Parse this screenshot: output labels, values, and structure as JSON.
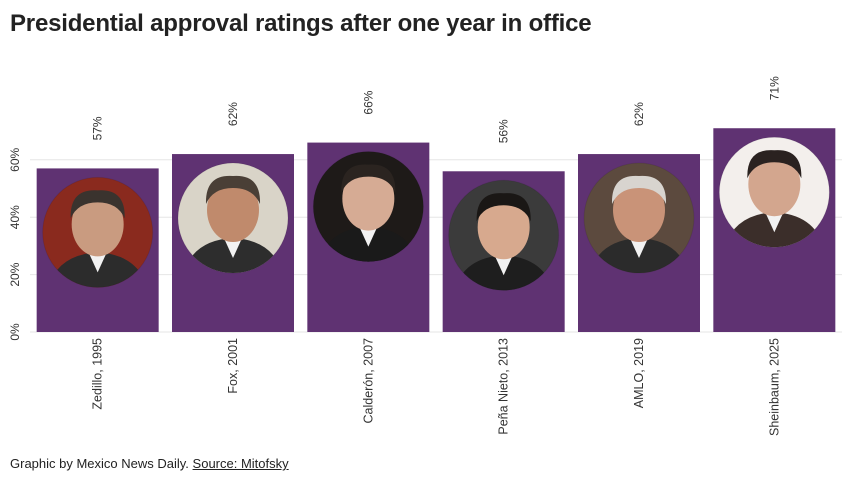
{
  "title": "Presidential approval ratings after one year in office",
  "footer": {
    "credit": "Graphic by Mexico News Daily.",
    "source_label": "Source: Mitofsky"
  },
  "chart_data": {
    "type": "bar",
    "categories": [
      "Zedillo, 1995",
      "Fox, 2001",
      "Calderón, 2007",
      "Peña Nieto, 2013",
      "AMLO, 2019",
      "Sheinbaum, 2025"
    ],
    "values": [
      57,
      62,
      66,
      56,
      62,
      71
    ],
    "value_labels": [
      "57%",
      "62%",
      "66%",
      "56%",
      "62%",
      "71%"
    ],
    "yticks": [
      0,
      20,
      40,
      60
    ],
    "ytick_labels": [
      "0%",
      "20%",
      "40%",
      "60%"
    ],
    "ylim": [
      0,
      100
    ],
    "grid": true,
    "bar_color": "#5f3272",
    "grid_color": "#e6e6e6",
    "portrait_icons": [
      "zedillo-portrait",
      "fox-portrait",
      "calderon-portrait",
      "pena-nieto-portrait",
      "amlo-portrait",
      "sheinbaum-portrait"
    ]
  }
}
